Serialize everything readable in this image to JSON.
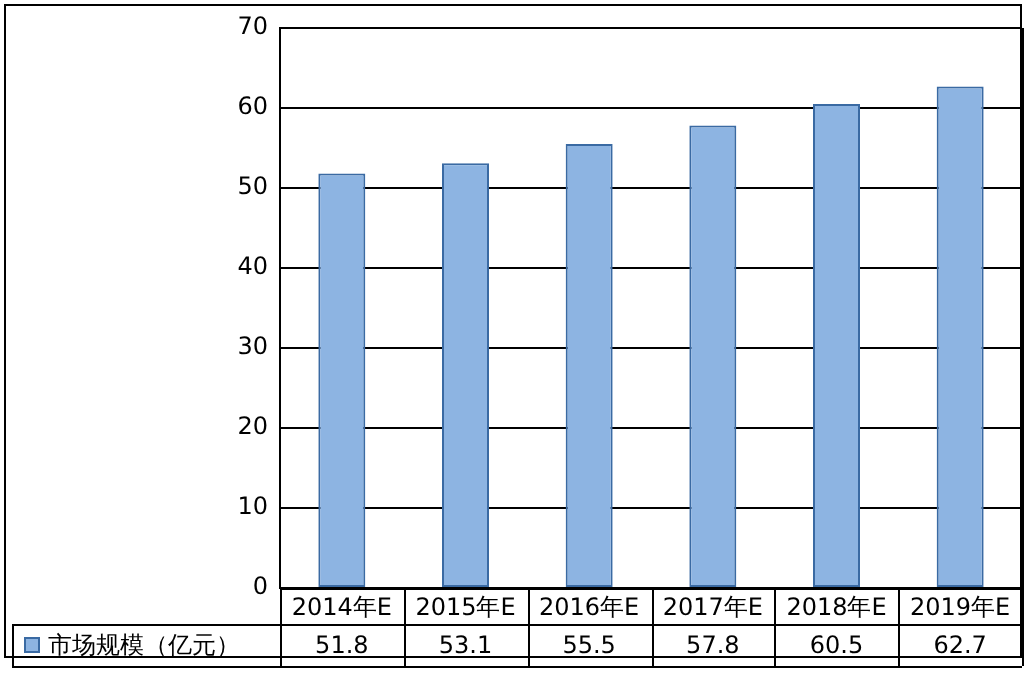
{
  "chart_data": {
    "type": "bar",
    "categories": [
      "2014年E",
      "2015年E",
      "2016年E",
      "2017年E",
      "2018年E",
      "2019年E"
    ],
    "series": [
      {
        "name": "市场规模（亿元）",
        "color": "#8db4e2",
        "values": [
          51.8,
          53.1,
          55.5,
          57.8,
          60.5,
          62.7
        ]
      }
    ],
    "ylim": [
      0,
      70
    ],
    "yticks": [
      0,
      10,
      20,
      30,
      40,
      50,
      60,
      70
    ],
    "grid": "y",
    "legend": "bottom",
    "data_labels": true
  }
}
